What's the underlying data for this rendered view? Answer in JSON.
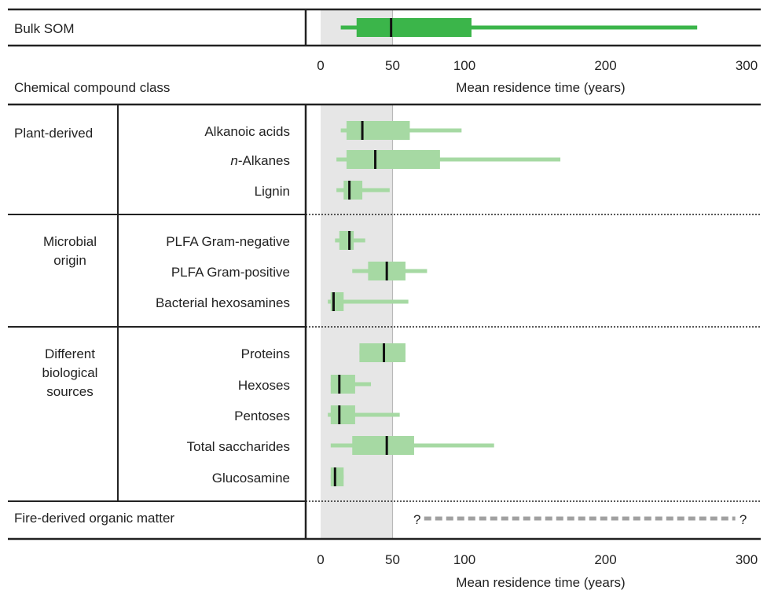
{
  "chart_data": {
    "type": "box",
    "title": "",
    "xlabel": "Mean residence time (years)",
    "column_header": "Chemical compound class",
    "x_axis_break": "nonlinear: 0-100 expanded, 100-300 compressed",
    "xticks": [
      0,
      50,
      100,
      200,
      300
    ],
    "xlim": [
      0,
      300
    ],
    "shaded_band": [
      0,
      50
    ],
    "reference_line": 50,
    "bulk": {
      "name": "Bulk SOM",
      "color": "#3bb54a",
      "whisker": [
        14,
        265
      ],
      "box": [
        25,
        105
      ],
      "median": 49
    },
    "groups": [
      {
        "name": "Plant-derived",
        "items": [
          {
            "label": "Alkanoic acids",
            "whisker": [
              14,
              98
            ],
            "box": [
              18,
              62
            ],
            "median": 29
          },
          {
            "label": "n-Alkanes",
            "label_italic": "n",
            "label_rest": "-Alkanes",
            "whisker": [
              11,
              168
            ],
            "box": [
              18,
              83
            ],
            "median": 38
          },
          {
            "label": "Lignin",
            "whisker": [
              11,
              48
            ],
            "box": [
              16,
              29
            ],
            "median": 20
          }
        ]
      },
      {
        "name": "Microbial origin",
        "name_lines": [
          "Microbial",
          "origin"
        ],
        "items": [
          {
            "label": "PLFA Gram-negative",
            "whisker": [
              10,
              31
            ],
            "box": [
              13,
              23
            ],
            "median": 20
          },
          {
            "label": "PLFA Gram-positive",
            "whisker": [
              22,
              74
            ],
            "box": [
              33,
              59
            ],
            "median": 46
          },
          {
            "label": "Bacterial hexosamines",
            "whisker": [
              5,
              61
            ],
            "box": [
              7,
              16
            ],
            "median": 9
          }
        ]
      },
      {
        "name": "Different biological sources",
        "name_lines": [
          "Different",
          "biological",
          "sources"
        ],
        "items": [
          {
            "label": "Proteins",
            "whisker": [
              27,
              59
            ],
            "box": [
              27,
              59
            ],
            "median": 44
          },
          {
            "label": "Hexoses",
            "whisker": [
              7,
              35
            ],
            "box": [
              7,
              24
            ],
            "median": 13
          },
          {
            "label": "Pentoses",
            "whisker": [
              5,
              55
            ],
            "box": [
              7,
              24
            ],
            "median": 13
          },
          {
            "label": "Total saccharides",
            "whisker": [
              7,
              121
            ],
            "box": [
              22,
              65
            ],
            "median": 46
          },
          {
            "label": "Glucosamine",
            "whisker": [
              7,
              16
            ],
            "box": [
              7,
              16
            ],
            "median": 10
          }
        ]
      },
      {
        "name": "Fire-derived organic matter",
        "items": [
          {
            "label": "",
            "range": [
              72,
              292
            ],
            "unknown": true,
            "marker": "?"
          }
        ]
      }
    ],
    "colors": {
      "bulk": "#3bb54a",
      "compound": "#a6d9a3",
      "median": "#111111",
      "band": "#e6e6e6",
      "dashed": "#a0a0a0"
    }
  }
}
